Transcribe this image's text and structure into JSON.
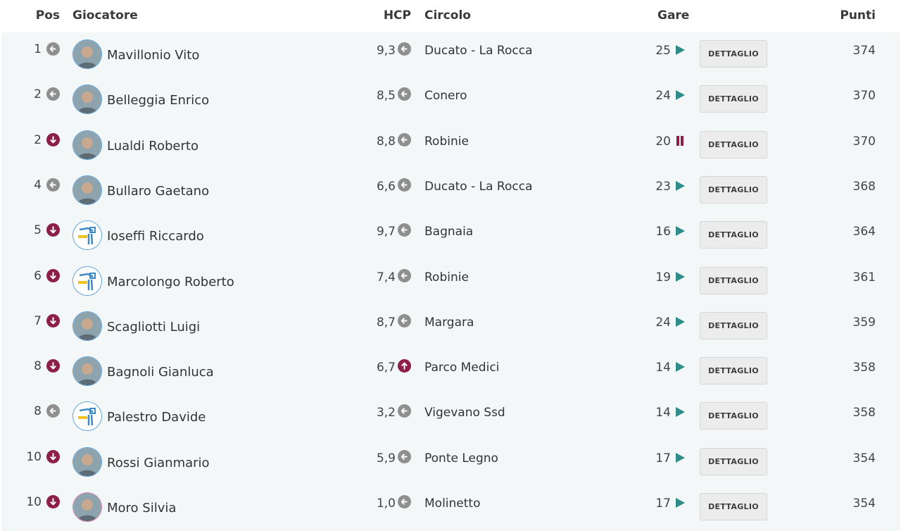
{
  "header": {
    "pos": "Pos",
    "player": "Giocatore",
    "hcp": "HCP",
    "club": "Circolo",
    "races": "Gare",
    "points": "Punti"
  },
  "detail_label": "DETTAGLIO",
  "colors": {
    "neutral_trend": "#8f8f8f",
    "down_trend": "#8c1f45",
    "play_icon": "#2f8c8a",
    "pause_icon": "#8c1f45"
  },
  "rows": [
    {
      "pos": "1",
      "pos_trend": "neutral",
      "name": "Mavillonio Vito",
      "avatar": "photo-avatar",
      "hcp": "9,3",
      "hcp_trend": "neutral",
      "club": "Ducato - La Rocca",
      "races": "25",
      "race_status": "play",
      "points": "374"
    },
    {
      "pos": "2",
      "pos_trend": "neutral",
      "name": "Belleggia Enrico",
      "avatar": "photo-avatar",
      "hcp": "8,5",
      "hcp_trend": "neutral",
      "club": "Conero",
      "races": "24",
      "race_status": "play",
      "points": "370"
    },
    {
      "pos": "2",
      "pos_trend": "down",
      "name": "Lualdi Roberto",
      "avatar": "photo-avatar",
      "hcp": "8,8",
      "hcp_trend": "neutral",
      "club": "Robinie",
      "races": "20",
      "race_status": "pause",
      "points": "370"
    },
    {
      "pos": "4",
      "pos_trend": "neutral",
      "name": "Bullaro Gaetano",
      "avatar": "photo-avatar",
      "hcp": "6,6",
      "hcp_trend": "neutral",
      "club": "Ducato - La Rocca",
      "races": "23",
      "race_status": "play",
      "points": "368"
    },
    {
      "pos": "5",
      "pos_trend": "down",
      "name": "Ioseffi Riccardo",
      "avatar": "golfer-logo",
      "hcp": "9,7",
      "hcp_trend": "neutral",
      "club": "Bagnaia",
      "races": "16",
      "race_status": "play",
      "points": "364"
    },
    {
      "pos": "6",
      "pos_trend": "down",
      "name": "Marcolongo Roberto",
      "avatar": "golfer-logo",
      "hcp": "7,4",
      "hcp_trend": "neutral",
      "club": "Robinie",
      "races": "19",
      "race_status": "play",
      "points": "361"
    },
    {
      "pos": "7",
      "pos_trend": "down",
      "name": "Scagliotti Luigi",
      "avatar": "photo-avatar",
      "hcp": "8,7",
      "hcp_trend": "neutral",
      "club": "Margara",
      "races": "24",
      "race_status": "play",
      "points": "359"
    },
    {
      "pos": "8",
      "pos_trend": "down",
      "name": "Bagnoli Gianluca",
      "avatar": "photo-avatar",
      "hcp": "6,7",
      "hcp_trend": "up",
      "club": "Parco Medici",
      "races": "14",
      "race_status": "play",
      "points": "358"
    },
    {
      "pos": "8",
      "pos_trend": "neutral",
      "name": "Palestro Davide",
      "avatar": "golfer-logo",
      "hcp": "3,2",
      "hcp_trend": "neutral",
      "club": "Vigevano Ssd",
      "races": "14",
      "race_status": "play",
      "points": "358"
    },
    {
      "pos": "10",
      "pos_trend": "down",
      "name": "Rossi Gianmario",
      "avatar": "photo-avatar",
      "hcp": "5,9",
      "hcp_trend": "neutral",
      "club": "Ponte Legno",
      "races": "17",
      "race_status": "play",
      "points": "354"
    },
    {
      "pos": "10",
      "pos_trend": "down",
      "name": "Moro Silvia",
      "avatar": "photo-avatar",
      "hcp": "1,0",
      "hcp_trend": "neutral",
      "club": "Molinetto",
      "races": "17",
      "race_status": "play",
      "points": "354"
    }
  ]
}
